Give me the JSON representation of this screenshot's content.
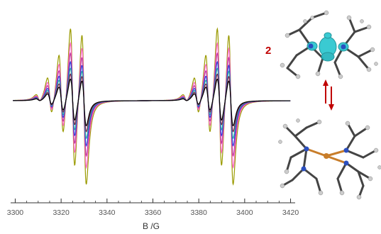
{
  "chart_data": {
    "type": "line",
    "title": "",
    "xlabel": "B /G",
    "ylabel": "",
    "xlim": [
      3298,
      3422
    ],
    "x_ticks": [
      "3300",
      "3320",
      "3340",
      "3360",
      "3380",
      "3400",
      "3420"
    ],
    "grid": false,
    "legend": "none",
    "plot_kind": "derivative EPR spectra, temperature-dependent series",
    "lines": [
      {
        "center": 3330,
        "spacing": 5.0,
        "weights": [
          0.05,
          0.25,
          0.55,
          0.95,
          1.0
        ]
      },
      {
        "center": 3394,
        "spacing": 5.0,
        "weights": [
          0.05,
          0.25,
          0.55,
          0.95,
          1.0
        ]
      }
    ],
    "series": [
      {
        "color": "#9a9a00",
        "amplitude": 1.0
      },
      {
        "color": "#ff66cc",
        "amplitude": 0.8
      },
      {
        "color": "#c0399f",
        "amplitude": 0.66
      },
      {
        "color": "#3344dd",
        "amplitude": 0.54
      },
      {
        "color": "#2aa6a6",
        "amplitude": 0.45
      },
      {
        "color": "#7a1f4a",
        "amplitude": 0.37
      },
      {
        "color": "#000000",
        "amplitude": 0.3
      }
    ],
    "annotations": [
      {
        "label": "2",
        "color": "#c00000"
      }
    ],
    "equilibrium_arrow_color": "#c00000",
    "spin_density_color": "#30c8d0",
    "bond_color": "#c87d2a"
  }
}
